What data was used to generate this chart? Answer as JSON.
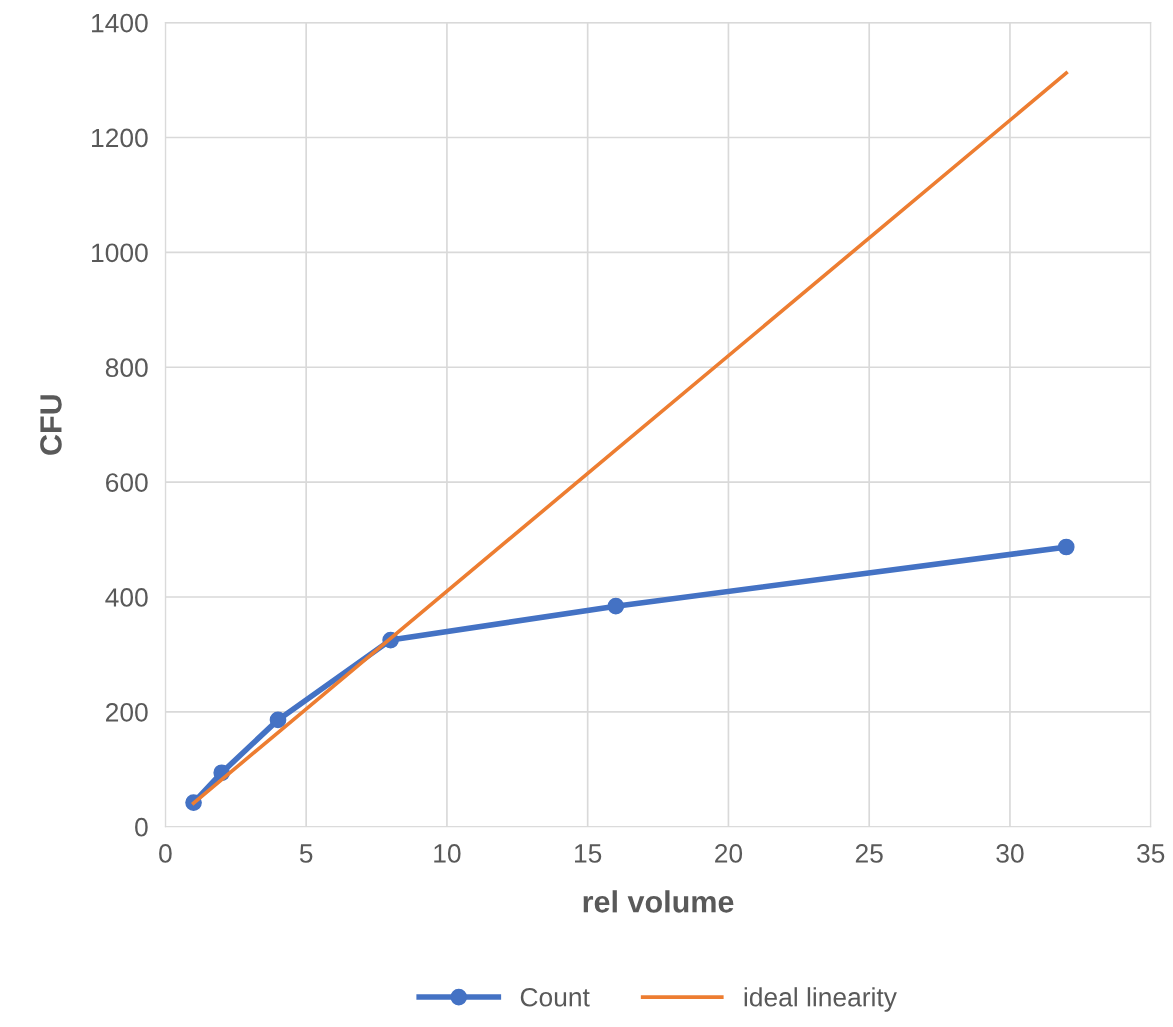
{
  "chart_data": {
    "type": "line",
    "xlabel": "rel volume",
    "ylabel": "CFU",
    "xlim": [
      0,
      35
    ],
    "xticks": [
      0,
      5,
      10,
      15,
      20,
      25,
      30,
      35
    ],
    "ylim": [
      0,
      1400
    ],
    "yticks": [
      0,
      200,
      400,
      600,
      800,
      1000,
      1200,
      1400
    ],
    "grid": true,
    "legend": "bottom",
    "series": [
      {
        "name": "Count",
        "color": "#4472c4",
        "marker": "circle",
        "x": [
          1,
          2,
          4,
          8,
          16,
          32
        ],
        "values": [
          42,
          94,
          186,
          325,
          384,
          487
        ]
      },
      {
        "name": "ideal linearity",
        "color": "#ed7d31",
        "marker": "none",
        "x": [
          1,
          2,
          4,
          8,
          16,
          32
        ],
        "values": [
          41,
          82,
          164,
          328,
          656,
          1312
        ]
      }
    ]
  }
}
